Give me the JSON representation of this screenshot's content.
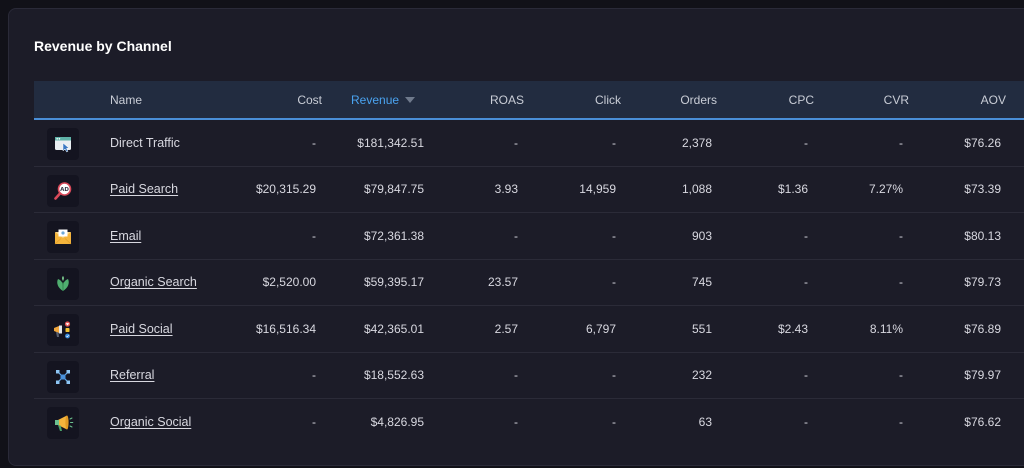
{
  "title": "Revenue by Channel",
  "columns": {
    "name": "Name",
    "cost": "Cost",
    "revenue": "Revenue",
    "roas": "ROAS",
    "click": "Click",
    "orders": "Orders",
    "cpc": "CPC",
    "cvr": "CVR",
    "aov": "AOV"
  },
  "sort": {
    "column": "revenue",
    "direction": "descending"
  },
  "rows": [
    {
      "icon": "browser-cursor-icon",
      "name": "Direct Traffic",
      "link": false,
      "cost": "-",
      "revenue": "$181,342.51",
      "roas": "-",
      "click": "-",
      "orders": "2,378",
      "cpc": "-",
      "cvr": "-",
      "aov": "$76.26"
    },
    {
      "icon": "ad-search-icon",
      "name": "Paid Search",
      "link": true,
      "cost": "$20,315.29",
      "revenue": "$79,847.75",
      "roas": "3.93",
      "click": "14,959",
      "orders": "1,088",
      "cpc": "$1.36",
      "cvr": "7.27%",
      "aov": "$73.39"
    },
    {
      "icon": "envelope-icon",
      "name": "Email",
      "link": true,
      "cost": "-",
      "revenue": "$72,361.38",
      "roas": "-",
      "click": "-",
      "orders": "903",
      "cpc": "-",
      "cvr": "-",
      "aov": "$80.13"
    },
    {
      "icon": "leaf-icon",
      "name": "Organic Search",
      "link": true,
      "cost": "$2,520.00",
      "revenue": "$59,395.17",
      "roas": "23.57",
      "click": "-",
      "orders": "745",
      "cpc": "-",
      "cvr": "-",
      "aov": "$79.73"
    },
    {
      "icon": "megaphone-social-icon",
      "name": "Paid Social",
      "link": true,
      "cost": "$16,516.34",
      "revenue": "$42,365.01",
      "roas": "2.57",
      "click": "6,797",
      "orders": "551",
      "cpc": "$2.43",
      "cvr": "8.11%",
      "aov": "$76.89"
    },
    {
      "icon": "network-nodes-icon",
      "name": "Referral",
      "link": true,
      "cost": "-",
      "revenue": "$18,552.63",
      "roas": "-",
      "click": "-",
      "orders": "232",
      "cpc": "-",
      "cvr": "-",
      "aov": "$79.97"
    },
    {
      "icon": "megaphone-icon",
      "name": "Organic Social",
      "link": true,
      "cost": "-",
      "revenue": "$4,826.95",
      "roas": "-",
      "click": "-",
      "orders": "63",
      "cpc": "-",
      "cvr": "-",
      "aov": "$76.62"
    }
  ]
}
